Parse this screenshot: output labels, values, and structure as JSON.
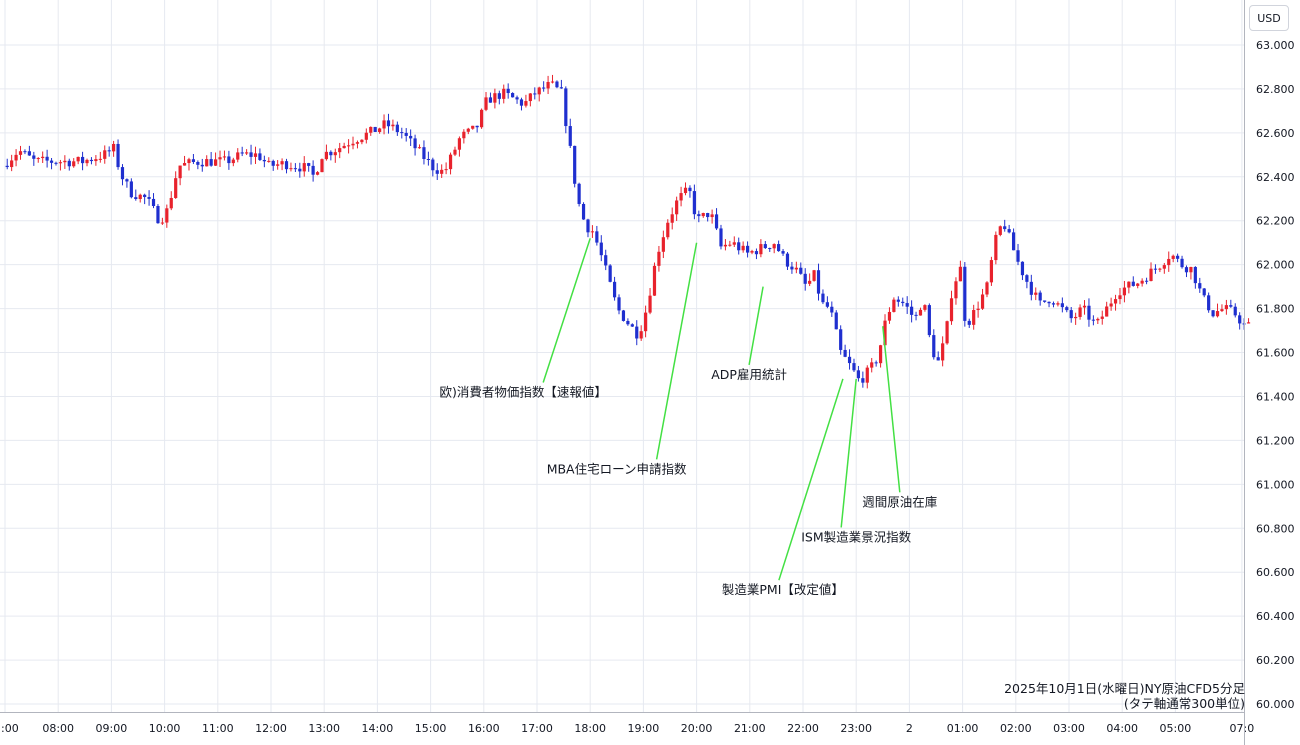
{
  "chart_data": {
    "type": "candlestick",
    "currency": "USD",
    "title_line1": "2025年10月1日(水曜日)NY原油CFD5分足",
    "title_line2": "(タテ軸通常300単位)",
    "y_ticks": [
      "63.000",
      "62.800",
      "62.600",
      "62.400",
      "62.200",
      "62.000",
      "61.800",
      "61.600",
      "61.400",
      "61.200",
      "61.000",
      "60.800",
      "60.600",
      "60.400",
      "60.200",
      "60.000"
    ],
    "ylim": [
      59.95,
      63.1
    ],
    "x_ticks": [
      ":00",
      "08:00",
      "09:00",
      "10:00",
      "11:00",
      "12:00",
      "13:00",
      "14:00",
      "15:00",
      "16:00",
      "17:00",
      "18:00",
      "19:00",
      "20:00",
      "21:00",
      "22:00",
      "23:00",
      "2",
      "01:00",
      "02:00",
      "03:00",
      "04:00",
      "05:00",
      "07:0"
    ],
    "x_tick_hours": [
      7,
      8,
      9,
      10,
      11,
      12,
      13,
      14,
      15,
      16,
      17,
      18,
      19,
      20,
      21,
      22,
      23,
      24,
      25,
      26,
      27,
      28,
      29,
      30.25
    ],
    "xlim_hours": [
      7,
      31.5
    ],
    "grid": true,
    "colors": {
      "up": "#e8222c",
      "down": "#1f2fcf",
      "grid": "#e6e9f0",
      "annotation_line": "#43e043"
    },
    "price_path": [
      [
        7.0,
        62.45
      ],
      [
        7.3,
        62.52
      ],
      [
        7.6,
        62.47
      ],
      [
        8.5,
        62.47
      ],
      [
        8.9,
        62.5
      ],
      [
        9.1,
        62.53
      ],
      [
        9.2,
        62.42
      ],
      [
        9.4,
        62.33
      ],
      [
        9.7,
        62.3
      ],
      [
        9.95,
        62.2
      ],
      [
        10.1,
        62.25
      ],
      [
        10.3,
        62.45
      ],
      [
        10.7,
        62.47
      ],
      [
        11.2,
        62.47
      ],
      [
        11.5,
        62.5
      ],
      [
        11.8,
        62.5
      ],
      [
        12.0,
        62.45
      ],
      [
        12.3,
        62.46
      ],
      [
        12.7,
        62.44
      ],
      [
        12.85,
        62.4
      ],
      [
        13.0,
        62.5
      ],
      [
        13.3,
        62.53
      ],
      [
        13.6,
        62.57
      ],
      [
        13.9,
        62.6
      ],
      [
        14.2,
        62.64
      ],
      [
        14.5,
        62.6
      ],
      [
        14.8,
        62.52
      ],
      [
        15.1,
        62.44
      ],
      [
        15.3,
        62.42
      ],
      [
        15.6,
        62.58
      ],
      [
        15.9,
        62.62
      ],
      [
        16.1,
        62.75
      ],
      [
        16.4,
        62.78
      ],
      [
        16.8,
        62.73
      ],
      [
        17.0,
        62.78
      ],
      [
        17.3,
        62.82
      ],
      [
        17.5,
        62.78
      ],
      [
        17.65,
        62.55
      ],
      [
        17.8,
        62.3
      ],
      [
        17.95,
        62.18
      ],
      [
        18.1,
        62.15
      ],
      [
        18.3,
        62.0
      ],
      [
        18.55,
        61.8
      ],
      [
        18.8,
        61.72
      ],
      [
        18.95,
        61.68
      ],
      [
        19.1,
        61.8
      ],
      [
        19.3,
        62.05
      ],
      [
        19.5,
        62.2
      ],
      [
        19.7,
        62.3
      ],
      [
        19.9,
        62.34
      ],
      [
        20.05,
        62.2
      ],
      [
        20.3,
        62.24
      ],
      [
        20.5,
        62.08
      ],
      [
        20.7,
        62.1
      ],
      [
        21.0,
        62.05
      ],
      [
        21.3,
        62.08
      ],
      [
        21.5,
        62.1
      ],
      [
        21.7,
        62.02
      ],
      [
        21.9,
        61.98
      ],
      [
        22.1,
        61.9
      ],
      [
        22.25,
        61.95
      ],
      [
        22.4,
        61.82
      ],
      [
        22.55,
        61.8
      ],
      [
        22.75,
        61.6
      ],
      [
        22.95,
        61.53
      ],
      [
        23.1,
        61.47
      ],
      [
        23.3,
        61.52
      ],
      [
        23.45,
        61.58
      ],
      [
        23.6,
        61.75
      ],
      [
        23.75,
        61.85
      ],
      [
        23.95,
        61.82
      ],
      [
        24.15,
        61.75
      ],
      [
        24.3,
        61.85
      ],
      [
        24.45,
        61.62
      ],
      [
        24.6,
        61.55
      ],
      [
        24.75,
        61.72
      ],
      [
        24.85,
        61.9
      ],
      [
        25.0,
        61.98
      ],
      [
        25.1,
        61.72
      ],
      [
        25.3,
        61.8
      ],
      [
        25.5,
        61.9
      ],
      [
        25.65,
        62.1
      ],
      [
        25.8,
        62.2
      ],
      [
        25.95,
        62.1
      ],
      [
        26.1,
        62.0
      ],
      [
        26.3,
        61.9
      ],
      [
        26.5,
        61.82
      ],
      [
        26.7,
        61.85
      ],
      [
        26.9,
        61.8
      ],
      [
        27.1,
        61.75
      ],
      [
        27.3,
        61.8
      ],
      [
        27.55,
        61.72
      ],
      [
        27.75,
        61.8
      ],
      [
        27.95,
        61.88
      ],
      [
        28.15,
        61.9
      ],
      [
        28.35,
        61.92
      ],
      [
        28.55,
        61.96
      ],
      [
        28.75,
        62.0
      ],
      [
        28.95,
        62.05
      ],
      [
        29.15,
        62.0
      ],
      [
        29.35,
        61.98
      ],
      [
        29.55,
        61.85
      ],
      [
        29.75,
        61.78
      ],
      [
        29.95,
        61.8
      ],
      [
        30.15,
        61.78
      ],
      [
        30.35,
        61.72
      ]
    ],
    "annotations": [
      {
        "text": "欧)消費者物価指数【速報値】",
        "x_hour": 18.0,
        "price": 62.12,
        "label_price": 61.4
      },
      {
        "text": "MBA住宅ローン申請指数",
        "x_hour": 20.0,
        "price": 62.1,
        "label_price": 61.05
      },
      {
        "text": "ADP雇用統計",
        "x_hour": 21.25,
        "price": 61.9,
        "label_price": 61.48
      },
      {
        "text": "週間原油在庫",
        "x_hour": 23.5,
        "price": 61.72,
        "label_price": 60.9
      },
      {
        "text": "ISM製造業景況指数",
        "x_hour": 23.0,
        "price": 61.48,
        "label_price": 60.74
      },
      {
        "text": "製造業PMI【改定値】",
        "x_hour": 22.75,
        "price": 61.48,
        "label_price": 60.5
      }
    ]
  }
}
